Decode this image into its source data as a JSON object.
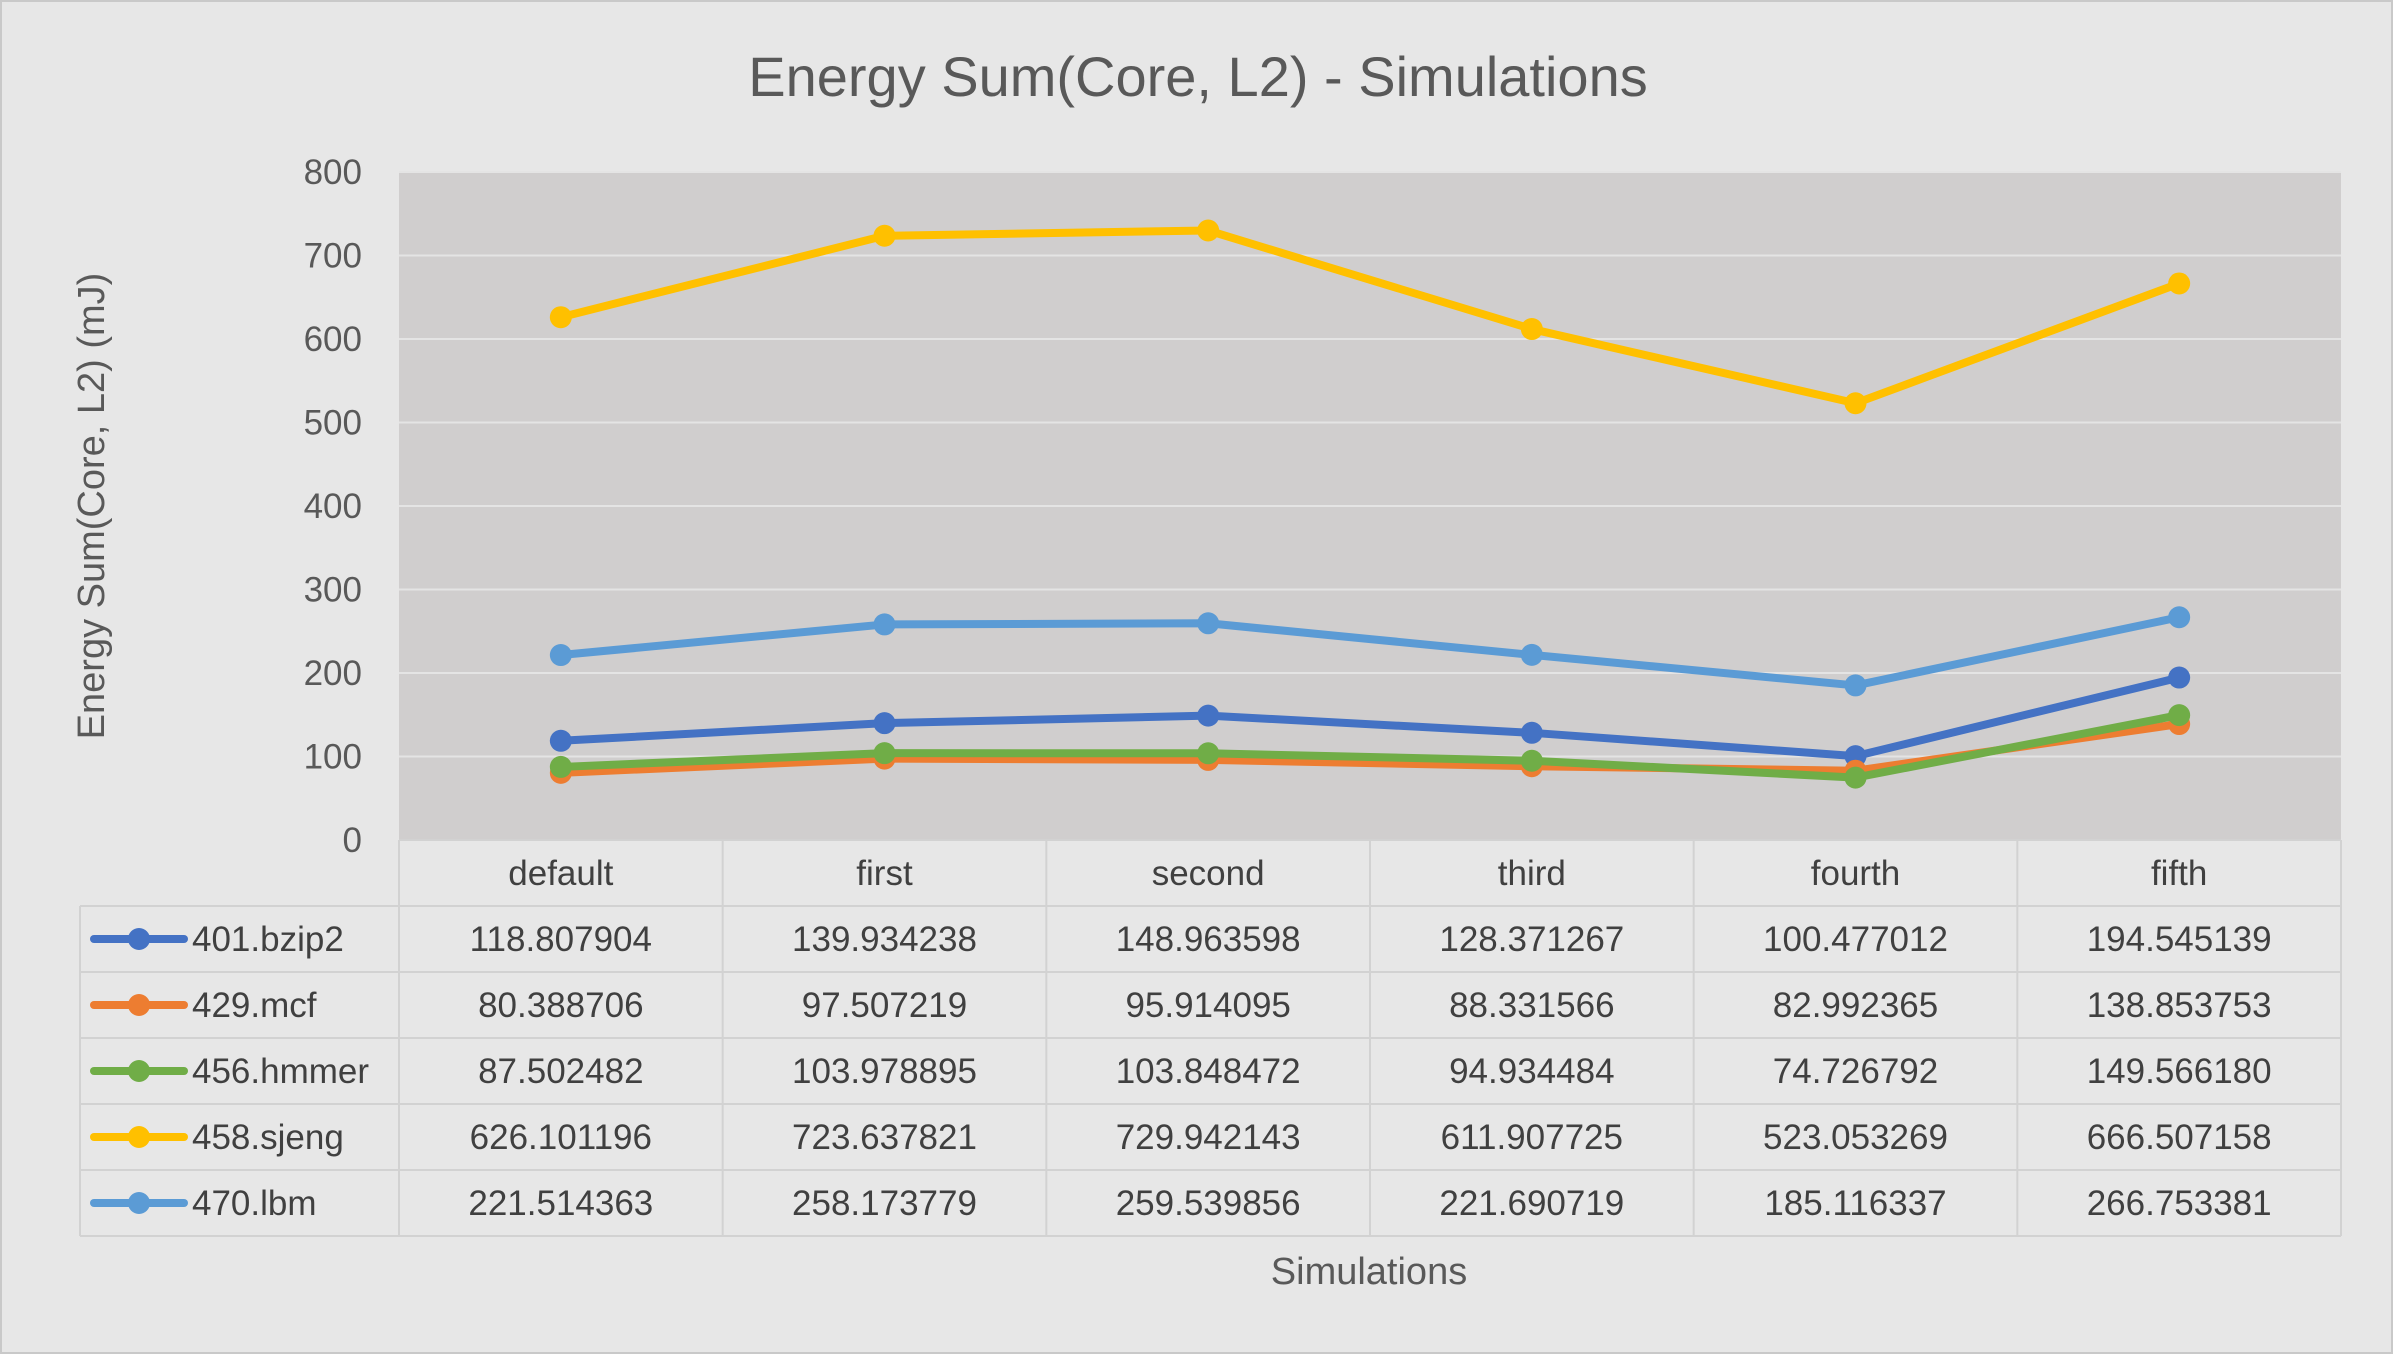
{
  "chart_data": {
    "type": "line",
    "title": "Energy Sum(Core, L2) - Simulations",
    "xlabel": "Simulations",
    "ylabel": "Energy Sum(Core, L2) (mJ)",
    "ylim": [
      0,
      800
    ],
    "yticks": [
      0,
      100,
      200,
      300,
      400,
      500,
      600,
      700,
      800
    ],
    "grid": true,
    "legend": "data-table-left",
    "categories": [
      "default",
      "first",
      "second",
      "third",
      "fourth",
      "fifth"
    ],
    "series": [
      {
        "name": "401.bzip2",
        "color": "#4472c4",
        "values": [
          118.807904,
          139.934238,
          148.963598,
          128.371267,
          100.477012,
          194.545139
        ],
        "labels": [
          "118.807904",
          "139.934238",
          "148.963598",
          "128.371267",
          "100.477012",
          "194.545139"
        ]
      },
      {
        "name": "429.mcf",
        "color": "#ed7d31",
        "values": [
          80.388706,
          97.507219,
          95.914095,
          88.331566,
          82.992365,
          138.853753
        ],
        "labels": [
          "80.388706",
          "97.507219",
          "95.914095",
          "88.331566",
          "82.992365",
          "138.853753"
        ]
      },
      {
        "name": "456.hmmer",
        "color": "#70ad47",
        "values": [
          87.502482,
          103.978895,
          103.848472,
          94.934484,
          74.726792,
          149.56618
        ],
        "labels": [
          "87.502482",
          "103.978895",
          "103.848472",
          "94.934484",
          "74.726792",
          "149.566180"
        ]
      },
      {
        "name": "458.sjeng",
        "color": "#ffc000",
        "values": [
          626.101196,
          723.637821,
          729.942143,
          611.907725,
          523.053269,
          666.507158
        ],
        "labels": [
          "626.101196",
          "723.637821",
          "729.942143",
          "611.907725",
          "523.053269",
          "666.507158"
        ]
      },
      {
        "name": "470.lbm",
        "color": "#5b9bd5",
        "values": [
          221.514363,
          258.173779,
          259.539856,
          221.690719,
          185.116337,
          266.753381
        ],
        "labels": [
          "221.514363",
          "258.173779",
          "259.539856",
          "221.690719",
          "185.116337",
          "266.753381"
        ]
      }
    ]
  }
}
